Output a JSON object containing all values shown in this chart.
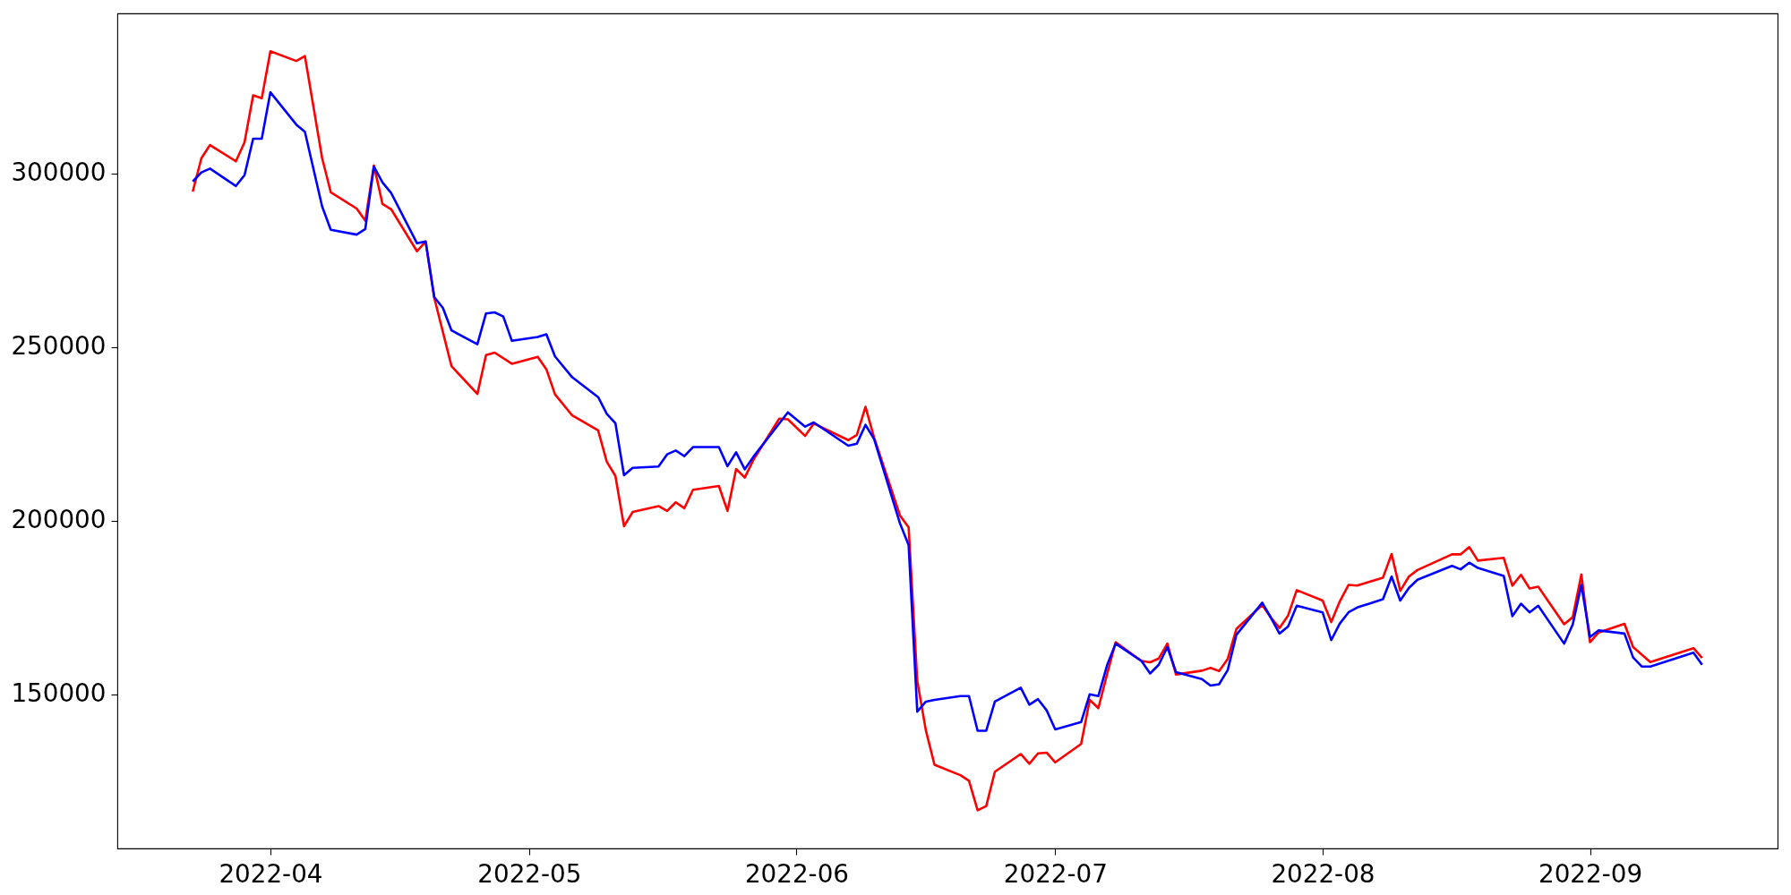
{
  "chart_data": {
    "type": "line",
    "xlim": [
      "2022-03-14T06:00",
      "2022-09-22T18:00"
    ],
    "xticks": [
      {
        "value": "2022-04-01",
        "label": "2022-04"
      },
      {
        "value": "2022-05-01",
        "label": "2022-05"
      },
      {
        "value": "2022-06-01",
        "label": "2022-06"
      },
      {
        "value": "2022-07-01",
        "label": "2022-07"
      },
      {
        "value": "2022-08-01",
        "label": "2022-08"
      },
      {
        "value": "2022-09-01",
        "label": "2022-09"
      }
    ],
    "ylim": [
      105600,
      346100
    ],
    "yticks": [
      150000,
      200000,
      250000,
      300000
    ],
    "grid": false,
    "series": [
      {
        "color": "#ff0000",
        "x": [
          "2022-03-23",
          "2022-03-24",
          "2022-03-25",
          "2022-03-28",
          "2022-03-29",
          "2022-03-30",
          "2022-03-31",
          "2022-04-01",
          "2022-04-04",
          "2022-04-05",
          "2022-04-07",
          "2022-04-08",
          "2022-04-11",
          "2022-04-12",
          "2022-04-13",
          "2022-04-14",
          "2022-04-15",
          "2022-04-18",
          "2022-04-19",
          "2022-04-20",
          "2022-04-22",
          "2022-04-25",
          "2022-04-26",
          "2022-04-27",
          "2022-04-29",
          "2022-05-02",
          "2022-05-03",
          "2022-05-04",
          "2022-05-06",
          "2022-05-09",
          "2022-05-10",
          "2022-05-11",
          "2022-05-12",
          "2022-05-13",
          "2022-05-16",
          "2022-05-17",
          "2022-05-18",
          "2022-05-19",
          "2022-05-20",
          "2022-05-23",
          "2022-05-24",
          "2022-05-25",
          "2022-05-26",
          "2022-05-27",
          "2022-05-30",
          "2022-05-31",
          "2022-06-02",
          "2022-06-03",
          "2022-06-07",
          "2022-06-08",
          "2022-06-09",
          "2022-06-10",
          "2022-06-13",
          "2022-06-14",
          "2022-06-15",
          "2022-06-16",
          "2022-06-17",
          "2022-06-20",
          "2022-06-21",
          "2022-06-22",
          "2022-06-23",
          "2022-06-24",
          "2022-06-27",
          "2022-06-28",
          "2022-06-29",
          "2022-06-30",
          "2022-07-01",
          "2022-07-04",
          "2022-07-05",
          "2022-07-06",
          "2022-07-07",
          "2022-07-08",
          "2022-07-11",
          "2022-07-12",
          "2022-07-13",
          "2022-07-14",
          "2022-07-15",
          "2022-07-18",
          "2022-07-19",
          "2022-07-20",
          "2022-07-21",
          "2022-07-22",
          "2022-07-25",
          "2022-07-26",
          "2022-07-27",
          "2022-07-28",
          "2022-07-29",
          "2022-08-01",
          "2022-08-02",
          "2022-08-03",
          "2022-08-04",
          "2022-08-05",
          "2022-08-08",
          "2022-08-09",
          "2022-08-10",
          "2022-08-11",
          "2022-08-12",
          "2022-08-16",
          "2022-08-17",
          "2022-08-18",
          "2022-08-19",
          "2022-08-22",
          "2022-08-23",
          "2022-08-24",
          "2022-08-25",
          "2022-08-26",
          "2022-08-29",
          "2022-08-30",
          "2022-08-31",
          "2022-09-01",
          "2022-09-02",
          "2022-09-05",
          "2022-09-06",
          "2022-09-08",
          "2022-09-13",
          "2022-09-14"
        ],
        "values": [
          294800,
          304400,
          308200,
          303500,
          309000,
          322500,
          321700,
          335200,
          332400,
          333800,
          304400,
          294600,
          289900,
          286400,
          302300,
          291200,
          289700,
          277600,
          280400,
          264200,
          244500,
          236500,
          247700,
          248400,
          245200,
          247200,
          243600,
          236400,
          230300,
          226000,
          217000,
          212900,
          198400,
          202500,
          204200,
          202800,
          205300,
          203600,
          208900,
          210000,
          202800,
          214900,
          212400,
          217500,
          229400,
          229200,
          224400,
          228000,
          223200,
          224700,
          232800,
          223900,
          201500,
          198100,
          153900,
          139600,
          129700,
          126700,
          125100,
          116600,
          117800,
          127700,
          132800,
          130000,
          133000,
          133200,
          130400,
          135700,
          148400,
          146000,
          155700,
          165000,
          159600,
          159200,
          160300,
          164600,
          155700,
          156800,
          157600,
          156700,
          160200,
          168800,
          175700,
          172100,
          169100,
          172700,
          180000,
          177000,
          170800,
          176800,
          181500,
          181300,
          183600,
          190400,
          179800,
          183900,
          185800,
          190300,
          190300,
          192400,
          188500,
          189300,
          181300,
          184400,
          180500,
          181000,
          170200,
          172200,
          184500,
          165000,
          167800,
          170300,
          163600,
          159300,
          163300,
          160500
        ]
      },
      {
        "color": "#0000ff",
        "x": [
          "2022-03-23",
          "2022-03-24",
          "2022-03-25",
          "2022-03-28",
          "2022-03-29",
          "2022-03-30",
          "2022-03-31",
          "2022-04-01",
          "2022-04-04",
          "2022-04-05",
          "2022-04-07",
          "2022-04-08",
          "2022-04-11",
          "2022-04-12",
          "2022-04-13",
          "2022-04-14",
          "2022-04-15",
          "2022-04-18",
          "2022-04-19",
          "2022-04-20",
          "2022-04-21",
          "2022-04-22",
          "2022-04-25",
          "2022-04-26",
          "2022-04-27",
          "2022-04-28",
          "2022-04-29",
          "2022-05-02",
          "2022-05-03",
          "2022-05-04",
          "2022-05-06",
          "2022-05-09",
          "2022-05-10",
          "2022-05-11",
          "2022-05-12",
          "2022-05-13",
          "2022-05-16",
          "2022-05-17",
          "2022-05-18",
          "2022-05-19",
          "2022-05-20",
          "2022-05-23",
          "2022-05-24",
          "2022-05-25",
          "2022-05-26",
          "2022-05-27",
          "2022-05-31",
          "2022-06-02",
          "2022-06-03",
          "2022-06-07",
          "2022-06-08",
          "2022-06-09",
          "2022-06-10",
          "2022-06-13",
          "2022-06-14",
          "2022-06-15",
          "2022-06-16",
          "2022-06-17",
          "2022-06-20",
          "2022-06-21",
          "2022-06-22",
          "2022-06-23",
          "2022-06-24",
          "2022-06-27",
          "2022-06-28",
          "2022-06-29",
          "2022-06-30",
          "2022-07-01",
          "2022-07-04",
          "2022-07-05",
          "2022-07-06",
          "2022-07-07",
          "2022-07-08",
          "2022-07-11",
          "2022-07-12",
          "2022-07-13",
          "2022-07-14",
          "2022-07-15",
          "2022-07-18",
          "2022-07-19",
          "2022-07-20",
          "2022-07-21",
          "2022-07-22",
          "2022-07-25",
          "2022-07-26",
          "2022-07-27",
          "2022-07-28",
          "2022-07-29",
          "2022-08-01",
          "2022-08-02",
          "2022-08-03",
          "2022-08-04",
          "2022-08-05",
          "2022-08-08",
          "2022-08-09",
          "2022-08-10",
          "2022-08-11",
          "2022-08-12",
          "2022-08-16",
          "2022-08-17",
          "2022-08-18",
          "2022-08-19",
          "2022-08-22",
          "2022-08-23",
          "2022-08-24",
          "2022-08-25",
          "2022-08-26",
          "2022-08-29",
          "2022-08-30",
          "2022-08-31",
          "2022-09-01",
          "2022-09-02",
          "2022-09-05",
          "2022-09-06",
          "2022-09-07",
          "2022-09-08",
          "2022-09-13",
          "2022-09-14"
        ],
        "values": [
          297700,
          300300,
          301400,
          296400,
          299500,
          310000,
          310000,
          323400,
          314100,
          312000,
          290500,
          283800,
          282400,
          284000,
          302000,
          297400,
          294400,
          279900,
          280400,
          264400,
          261300,
          254800,
          250800,
          259700,
          260000,
          258800,
          251800,
          252900,
          253700,
          247300,
          241300,
          235600,
          230800,
          228100,
          213100,
          215200,
          215600,
          219100,
          220200,
          218600,
          221200,
          221200,
          215700,
          219700,
          214800,
          218400,
          231200,
          227100,
          228300,
          221600,
          222200,
          227600,
          223500,
          199200,
          193000,
          145000,
          147900,
          148400,
          149500,
          149500,
          139500,
          139500,
          147900,
          151900,
          147000,
          148600,
          145400,
          139900,
          142000,
          150000,
          149500,
          158300,
          164600,
          159600,
          156000,
          158500,
          163600,
          156400,
          154400,
          152500,
          152900,
          157000,
          167100,
          176400,
          172100,
          167500,
          169500,
          175500,
          173600,
          165600,
          170400,
          173600,
          175000,
          177400,
          183900,
          177000,
          180600,
          183000,
          187000,
          186000,
          187900,
          186400,
          184100,
          172500,
          176100,
          173600,
          175500,
          164600,
          170100,
          181500,
          166500,
          168400,
          167500,
          160600,
          158000,
          158000,
          162000,
          158500
        ]
      }
    ]
  }
}
